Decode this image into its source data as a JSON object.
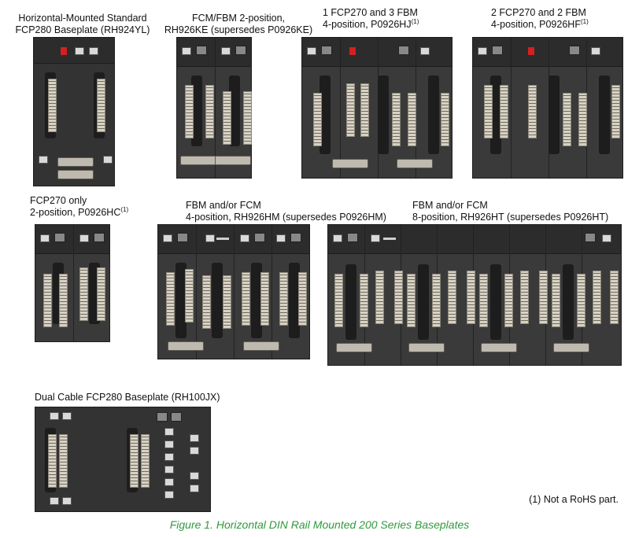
{
  "captions": {
    "rh924yl": {
      "line1": "Horizontal-Mounted Standard",
      "line2": "FCP280 Baseplate (RH924YL)"
    },
    "rh926ke": {
      "line1": "FCM/FBM 2-position,",
      "line2": "RH926KE (supersedes P0926KE)"
    },
    "p0926hj": {
      "line1": "1 FCP270 and 3 FBM",
      "line2": "4-position, P0926HJ",
      "note": "(1)"
    },
    "p0926hf": {
      "line1": "2 FCP270 and 2 FBM",
      "line2": "4-position, P0926HF",
      "note": "(1)"
    },
    "p0926hc": {
      "line1": "FCP270 only",
      "line2": "2-position, P0926HC",
      "note": "(1)"
    },
    "rh926hm": {
      "line1": "FBM and/or FCM",
      "line2": "4-position, RH926HM (supersedes P0926HM)"
    },
    "rh926ht": {
      "line1": "FBM and/or FCM",
      "line2": "8-position, RH926HT (supersedes P0926HT)"
    },
    "rh100jx": {
      "line1": "Dual Cable FCP280 Baseplate (RH100JX)"
    }
  },
  "footnote": "(1) Not a RoHS part.",
  "figure_caption": "Figure 1. Horizontal DIN Rail Mounted 200 Series Baseplates",
  "colors": {
    "caption_green": "#2e9a3c",
    "plate": "#3a3a3a",
    "connector": "#d7d2c4"
  }
}
